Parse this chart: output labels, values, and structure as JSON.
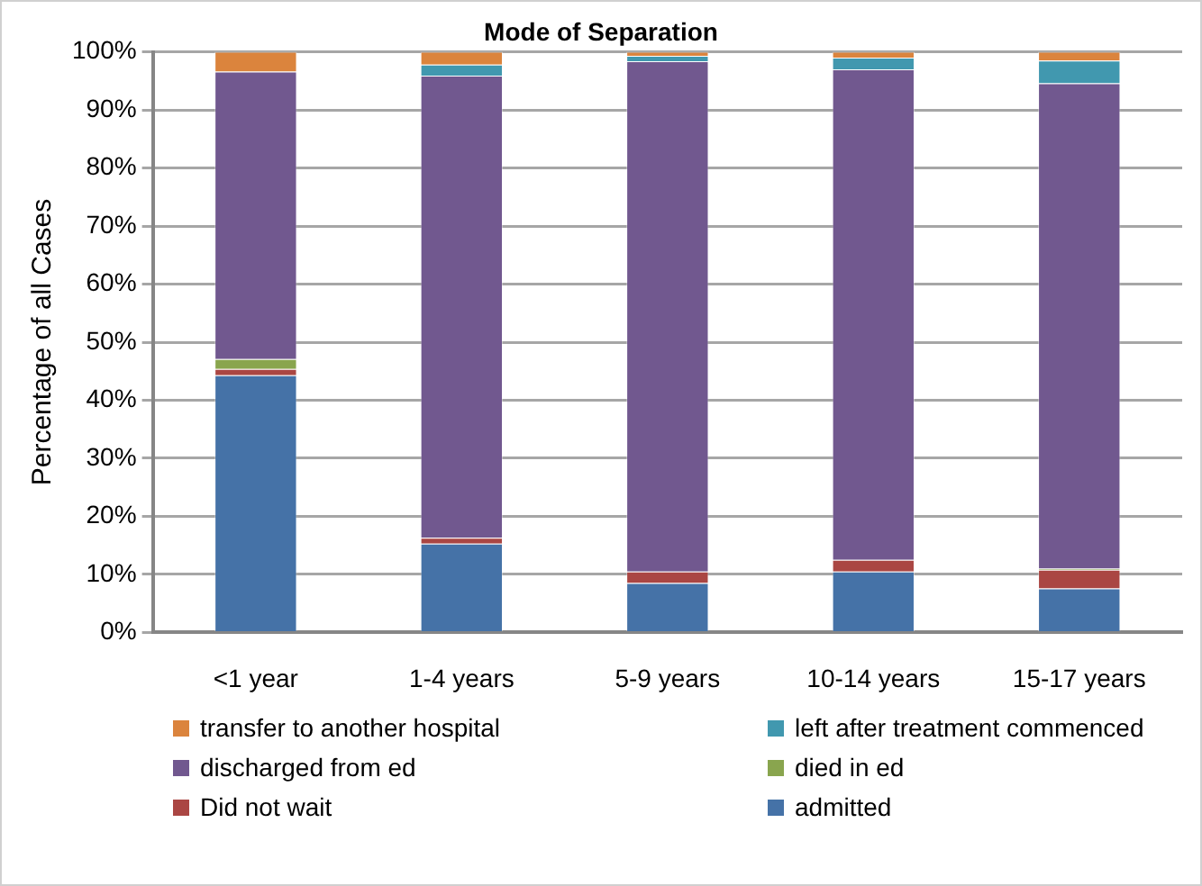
{
  "chart_data": {
    "type": "bar",
    "title": "Mode of Separation",
    "ylabel": "Percentage of all Cases",
    "categories": [
      "<1 year",
      "1-4 years",
      "5-9 years",
      "10-14 years",
      "15-17 years"
    ],
    "stacked": true,
    "ylim": [
      0,
      100
    ],
    "yticks": [
      {
        "value": 0,
        "label": "0%"
      },
      {
        "value": 10,
        "label": "10%"
      },
      {
        "value": 20,
        "label": "20%"
      },
      {
        "value": 30,
        "label": "30%"
      },
      {
        "value": 40,
        "label": "40%"
      },
      {
        "value": 50,
        "label": "50%"
      },
      {
        "value": 60,
        "label": "60%"
      },
      {
        "value": 70,
        "label": "70%"
      },
      {
        "value": 80,
        "label": "80%"
      },
      {
        "value": 90,
        "label": "90%"
      },
      {
        "value": 100,
        "label": "100%"
      }
    ],
    "grid": "y",
    "legend": "bottom",
    "series": [
      {
        "name": "admitted",
        "color": "#4572a7",
        "values": [
          44.3,
          15.3,
          8.5,
          10.5,
          7.6
        ]
      },
      {
        "name": "Did not wait",
        "color": "#aa4643",
        "values": [
          1.1,
          1.0,
          2.0,
          2.0,
          3.2
        ]
      },
      {
        "name": "died in ed",
        "color": "#89a54e",
        "values": [
          1.7,
          0,
          0,
          0,
          0.2
        ]
      },
      {
        "name": "discharged from ed",
        "color": "#71588f",
        "values": [
          49.5,
          79.6,
          87.9,
          84.5,
          83.6
        ]
      },
      {
        "name": "left after treatment commenced",
        "color": "#4198af",
        "values": [
          0,
          1.9,
          0.9,
          2.0,
          3.9
        ]
      },
      {
        "name": "transfer to another hospital",
        "color": "#db843d",
        "values": [
          3.4,
          2.2,
          0.7,
          1.0,
          1.5
        ]
      }
    ]
  }
}
